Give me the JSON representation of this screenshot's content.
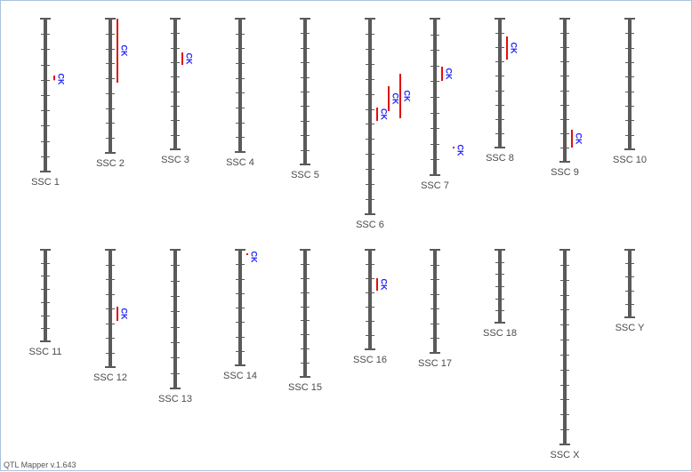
{
  "app": {
    "version_label": "QTL Mapper v.1.643"
  },
  "colors": {
    "chromosome": "#5a5a5a",
    "qtl_bar": "#e01010",
    "qtl_label": "#1a1aff",
    "chr_label": "#4a4a4a"
  },
  "chromosomes": [
    {
      "name": "SSC 1",
      "qtls": [
        {
          "label": "CK"
        }
      ]
    },
    {
      "name": "SSC 2",
      "qtls": [
        {
          "label": "CK"
        }
      ]
    },
    {
      "name": "SSC 3",
      "qtls": [
        {
          "label": "CK"
        }
      ]
    },
    {
      "name": "SSC 4",
      "qtls": []
    },
    {
      "name": "SSC 5",
      "qtls": []
    },
    {
      "name": "SSC 6",
      "qtls": [
        {
          "label": "CK"
        },
        {
          "label": "CK"
        },
        {
          "label": "CK"
        }
      ]
    },
    {
      "name": "SSC 7",
      "qtls": [
        {
          "label": "CK"
        },
        {
          "label": "CK"
        }
      ]
    },
    {
      "name": "SSC 8",
      "qtls": [
        {
          "label": "CK"
        }
      ]
    },
    {
      "name": "SSC 9",
      "qtls": [
        {
          "label": "CK"
        }
      ]
    },
    {
      "name": "SSC 10",
      "qtls": []
    },
    {
      "name": "SSC 11",
      "qtls": []
    },
    {
      "name": "SSC 12",
      "qtls": [
        {
          "label": "CK"
        }
      ]
    },
    {
      "name": "SSC 13",
      "qtls": []
    },
    {
      "name": "SSC 14",
      "qtls": [
        {
          "label": "CK"
        }
      ]
    },
    {
      "name": "SSC 15",
      "qtls": []
    },
    {
      "name": "SSC 16",
      "qtls": [
        {
          "label": "CK"
        }
      ]
    },
    {
      "name": "SSC 17",
      "qtls": []
    },
    {
      "name": "SSC 18",
      "qtls": []
    },
    {
      "name": "SSC X",
      "qtls": []
    },
    {
      "name": "SSC Y",
      "qtls": []
    }
  ]
}
